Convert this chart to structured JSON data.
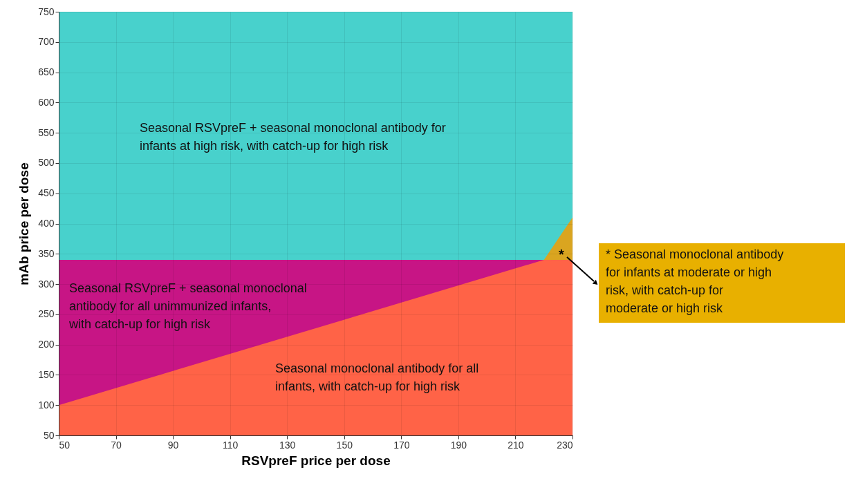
{
  "chart_data": {
    "type": "area",
    "xlabel": "RSVpreF price per dose",
    "ylabel": "mAb price per dose",
    "x": [
      50,
      220,
      230
    ],
    "series": [
      {
        "name": "* Seasonal monoclonal antibody for infants at moderate or high risk, with catch-up for moderate or high risk",
        "color": "#daa520",
        "values": [
          null,
          340,
          410
        ]
      },
      {
        "name": "Seasonal RSVpreF +  seasonal monoclonal antibody for all unimmunized infants, with catch-up for high risk",
        "color": "#c71585",
        "values": [
          340,
          340,
          null
        ]
      },
      {
        "name": "Seasonal monoclonal antibody for all infants, with catch-up for high risk",
        "color": "#ff6347",
        "values": [
          100,
          340,
          340
        ]
      }
    ],
    "bands": [
      {
        "axis": "y",
        "from": 340,
        "to": 750,
        "label": "Seasonal RSVpreF + seasonal monoclonal antibody for infants at high risk, with catch-up for high risk",
        "color": "#48d1cc"
      }
    ],
    "annotations": [
      "*"
    ],
    "xlim": [
      50,
      230
    ],
    "xticks": [
      50,
      70,
      90,
      110,
      130,
      150,
      170,
      190,
      210,
      230
    ],
    "ylim": [
      50,
      750
    ],
    "yticks": [
      50,
      100,
      150,
      200,
      250,
      300,
      350,
      400,
      450,
      500,
      550,
      600,
      650,
      700,
      750
    ],
    "grid": true
  }
}
